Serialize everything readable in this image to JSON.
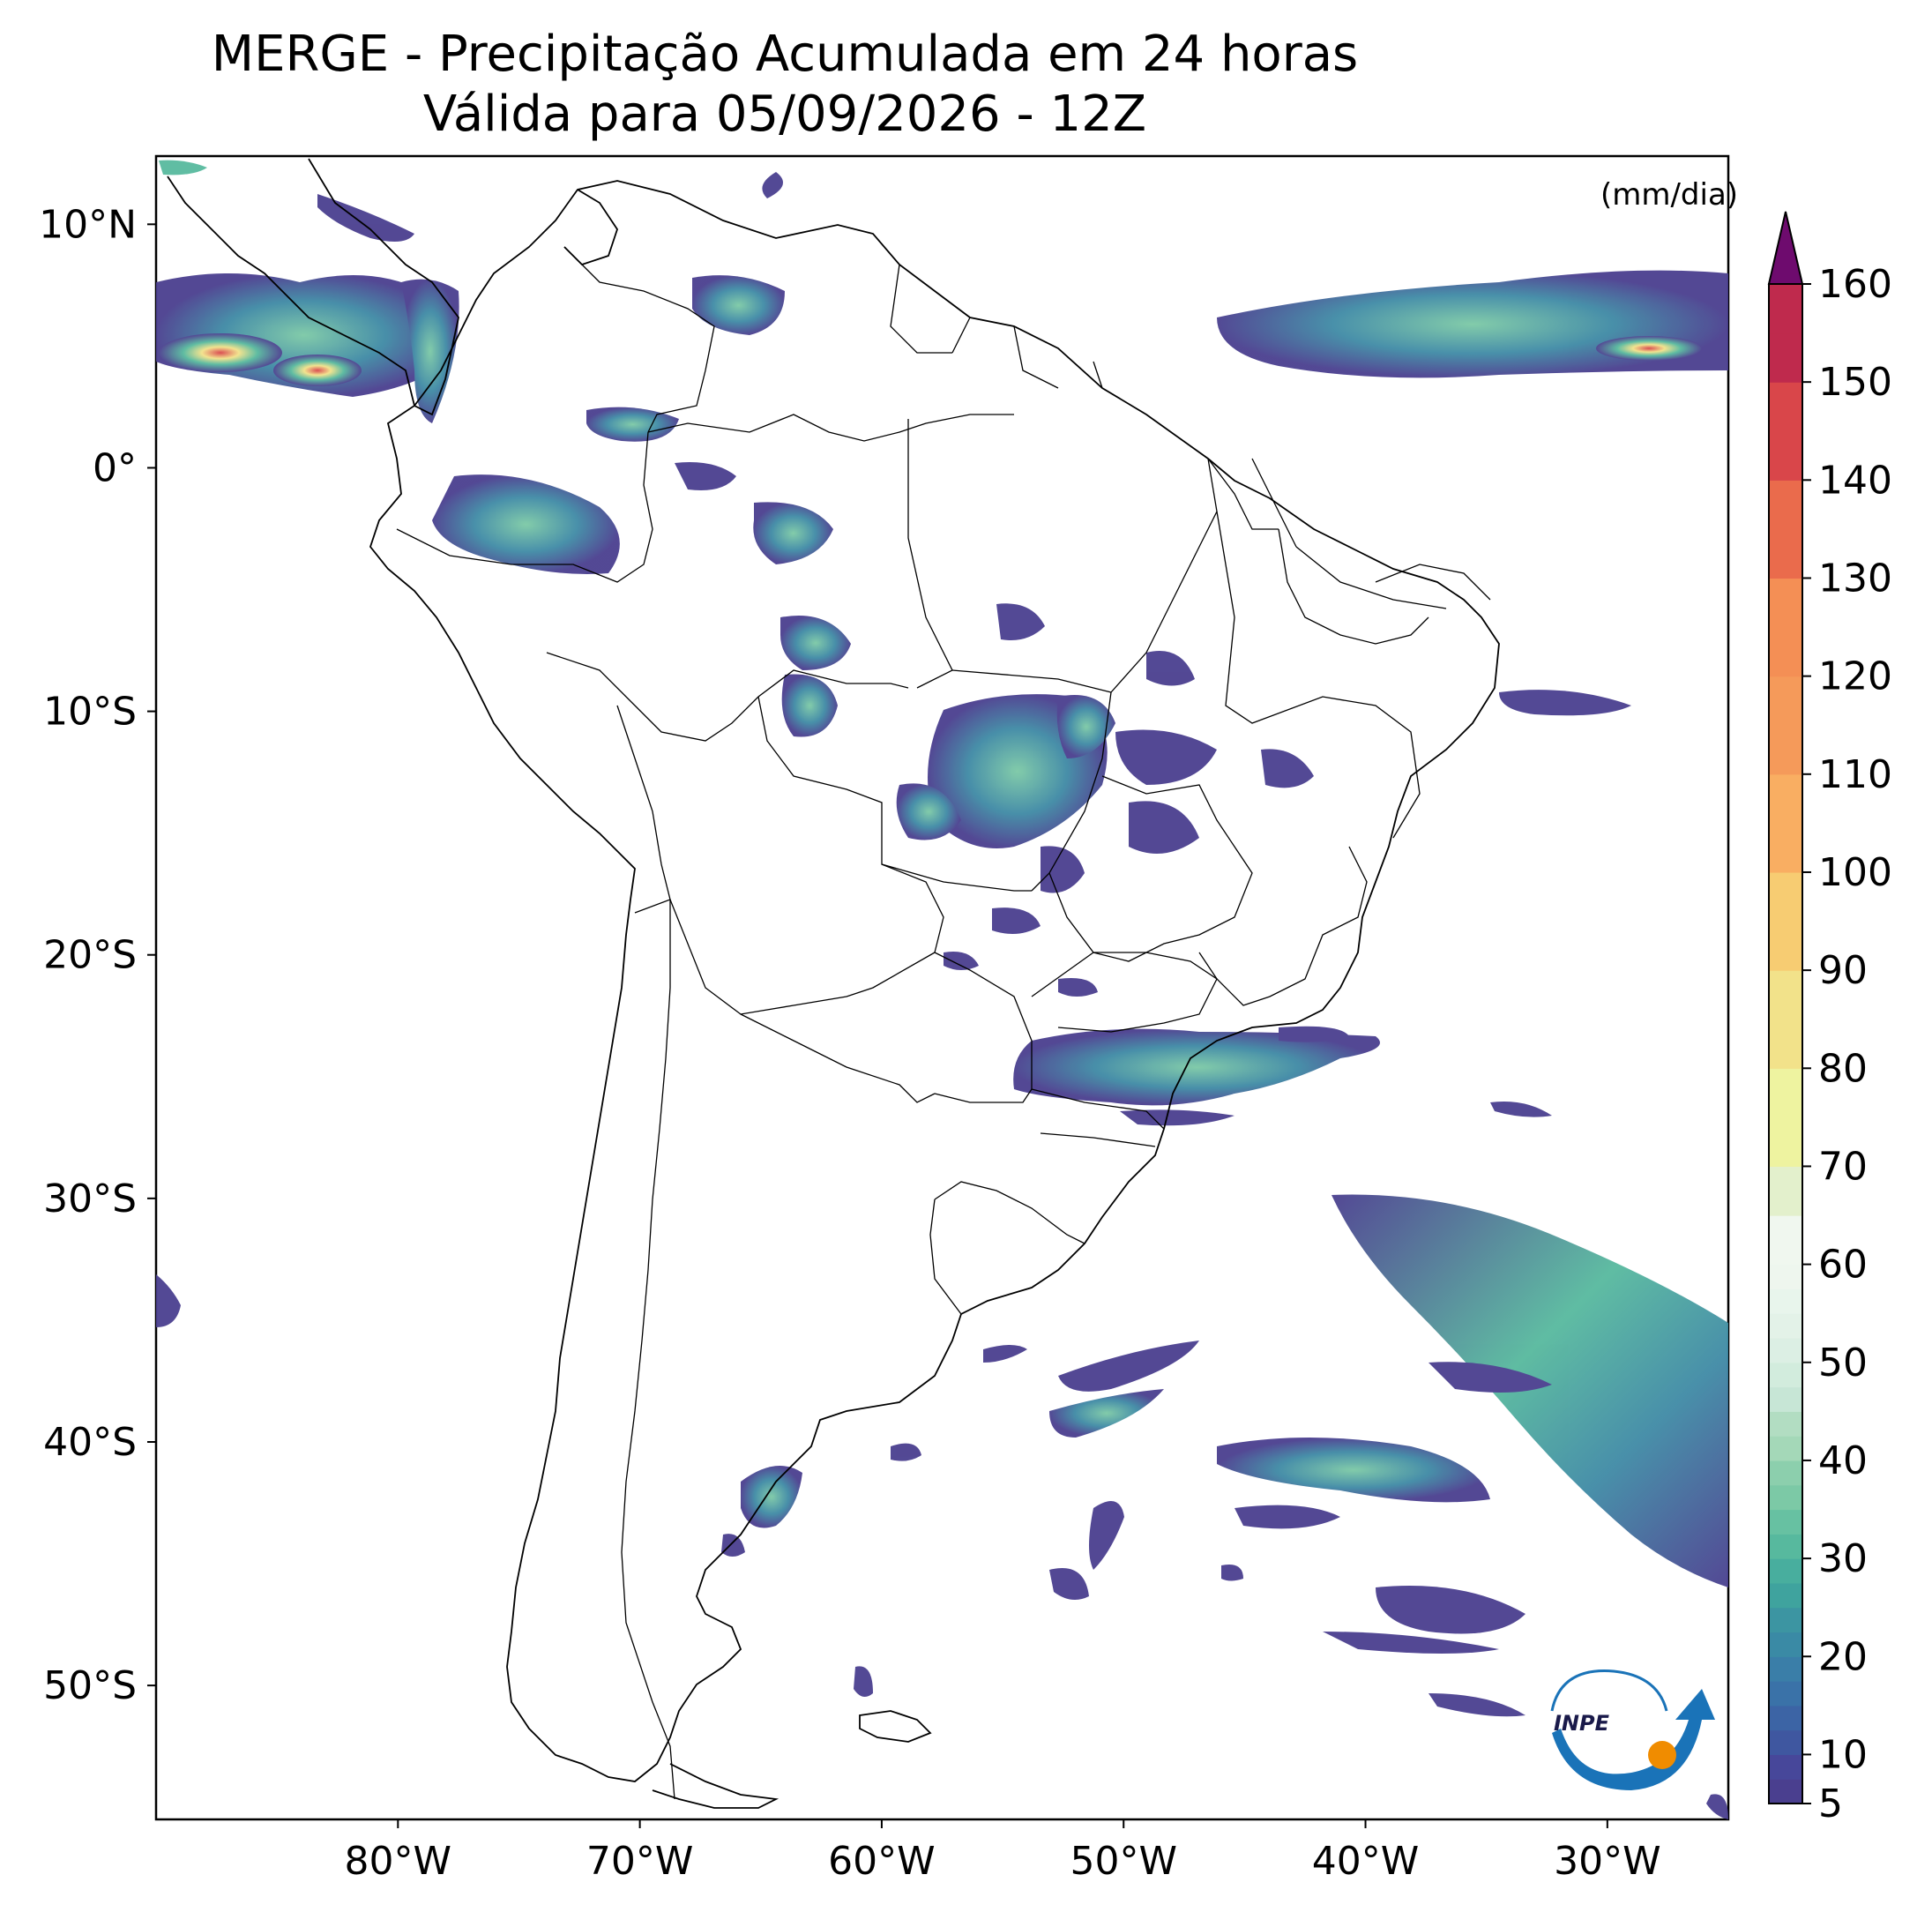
{
  "title": {
    "line1": "MERGE - Precipitação Acumulada em 24 horas",
    "line2": "Válida para 05/09/2026 - 12Z"
  },
  "axes": {
    "lat_ticks": [
      "10°N",
      "0°",
      "10°S",
      "20°S",
      "30°S",
      "40°S",
      "50°S"
    ],
    "lat_values": [
      10,
      0,
      -10,
      -20,
      -30,
      -40,
      -50
    ],
    "lon_ticks": [
      "80°W",
      "70°W",
      "60°W",
      "50°W",
      "40°W",
      "30°W"
    ],
    "lon_values": [
      -80,
      -70,
      -60,
      -50,
      -40,
      -30
    ],
    "lon_range": [
      -90,
      -25
    ],
    "lat_range": [
      -55.5,
      12.8
    ]
  },
  "colorbar": {
    "unit": "(mm/dia)",
    "ticks": [
      "5",
      "10",
      "20",
      "30",
      "40",
      "50",
      "60",
      "70",
      "80",
      "90",
      "100",
      "110",
      "120",
      "130",
      "140",
      "150",
      "160"
    ],
    "levels": [
      5,
      10,
      20,
      30,
      40,
      50,
      60,
      70,
      80,
      90,
      100,
      110,
      120,
      130,
      140,
      150,
      160
    ],
    "colors": [
      "#4a3f8f",
      "#3f5aa0",
      "#3a72a8",
      "#3a8aa5",
      "#3fa39e",
      "#57b99e",
      "#7cc9a6",
      "#a4d8b8",
      "#c7e6d6",
      "#e3f0cc",
      "#eef3a0",
      "#f2e28a",
      "#f7cc72",
      "#f9ae62",
      "#f48f55",
      "#ea6b4c",
      "#d9464a",
      "#bf2a4d",
      "#a3174f"
    ],
    "extend_color": "#6e0b6e"
  },
  "logo": {
    "text": "INPE",
    "colors": {
      "arrow": "#1a73b8",
      "dot": "#f08c00"
    }
  }
}
